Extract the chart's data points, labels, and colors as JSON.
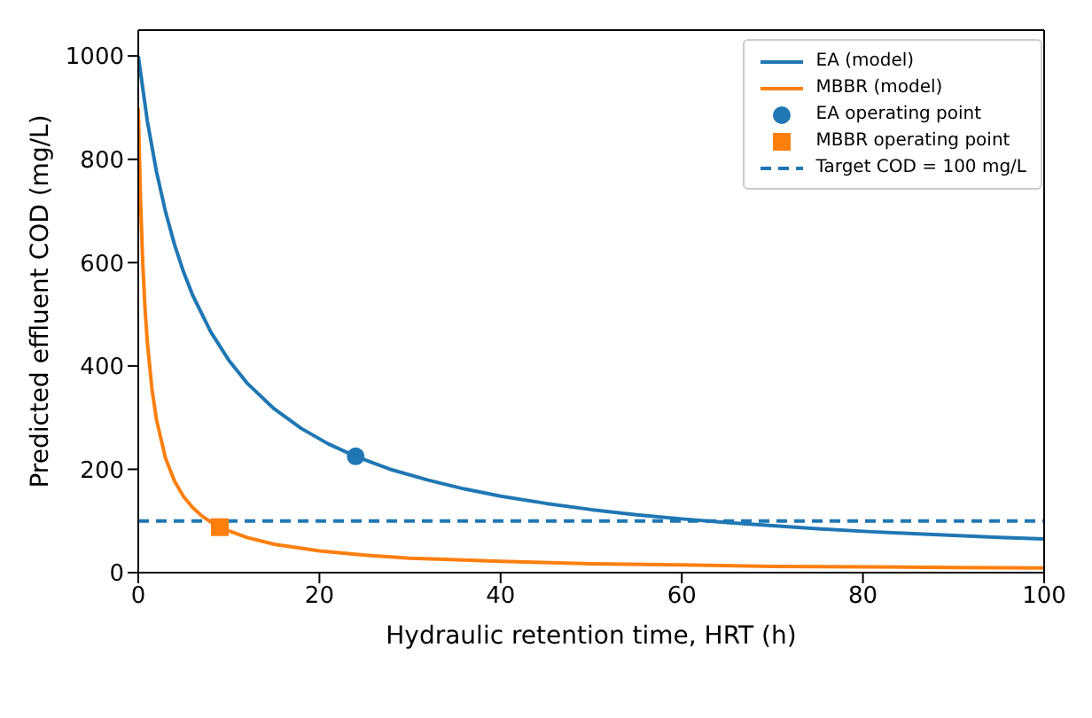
{
  "chart_data": {
    "type": "line",
    "xlabel": "Hydraulic retention time, HRT (h)",
    "ylabel": "Predicted effluent COD (mg/L)",
    "xlim": [
      0,
      100
    ],
    "xticks": [
      0,
      20,
      40,
      60,
      80,
      100
    ],
    "ylim": [
      0,
      1050
    ],
    "yticks": [
      0,
      200,
      400,
      600,
      800,
      1000
    ],
    "grid": false,
    "legend": "top right",
    "line_style": "solid",
    "series": [
      {
        "name": "EA (model)",
        "marker": "none",
        "color": "#1f77b4",
        "x": [
          0,
          1,
          2,
          3,
          4,
          5,
          6,
          8,
          10,
          12,
          15,
          18,
          21,
          24,
          28,
          32,
          36,
          40,
          45,
          50,
          55,
          60,
          65,
          70,
          75,
          80,
          85,
          90,
          95,
          100
        ],
        "values": [
          1000,
          874,
          777,
          699,
          635,
          582,
          537,
          466,
          411,
          367,
          317,
          279,
          249,
          225,
          199,
          179,
          162,
          148,
          134,
          122,
          112,
          104,
          97,
          91,
          85,
          80,
          76,
          72,
          68,
          65
        ]
      },
      {
        "name": "MBBR (model)",
        "marker": "none",
        "color": "#ff7f0e",
        "x": [
          0,
          0.25,
          0.5,
          0.75,
          1,
          1.5,
          2,
          3,
          4,
          5,
          6,
          7,
          8,
          9,
          10,
          12,
          15,
          20,
          25,
          30,
          40,
          50,
          60,
          70,
          80,
          90,
          100
        ],
        "values": [
          900,
          719,
          597,
          510,
          446,
          357,
          297,
          222,
          177,
          147,
          126,
          110,
          98,
          88,
          81,
          68,
          55,
          42,
          34,
          28,
          22,
          17,
          15,
          12,
          11,
          10,
          9
        ]
      },
      {
        "name": "EA operating point",
        "type": "scatter",
        "marker": "circle",
        "color": "#1f77b4",
        "x": [
          24
        ],
        "values": [
          225
        ]
      },
      {
        "name": "MBBR operating point",
        "type": "scatter",
        "marker": "square",
        "color": "#ff7f0e",
        "x": [
          9
        ],
        "values": [
          88
        ]
      }
    ],
    "ref_lines": [
      {
        "axis": "y",
        "value": 100,
        "label": "Target COD = 100 mg/L",
        "color": "#1f77b4",
        "line_style": "dashed"
      }
    ]
  }
}
